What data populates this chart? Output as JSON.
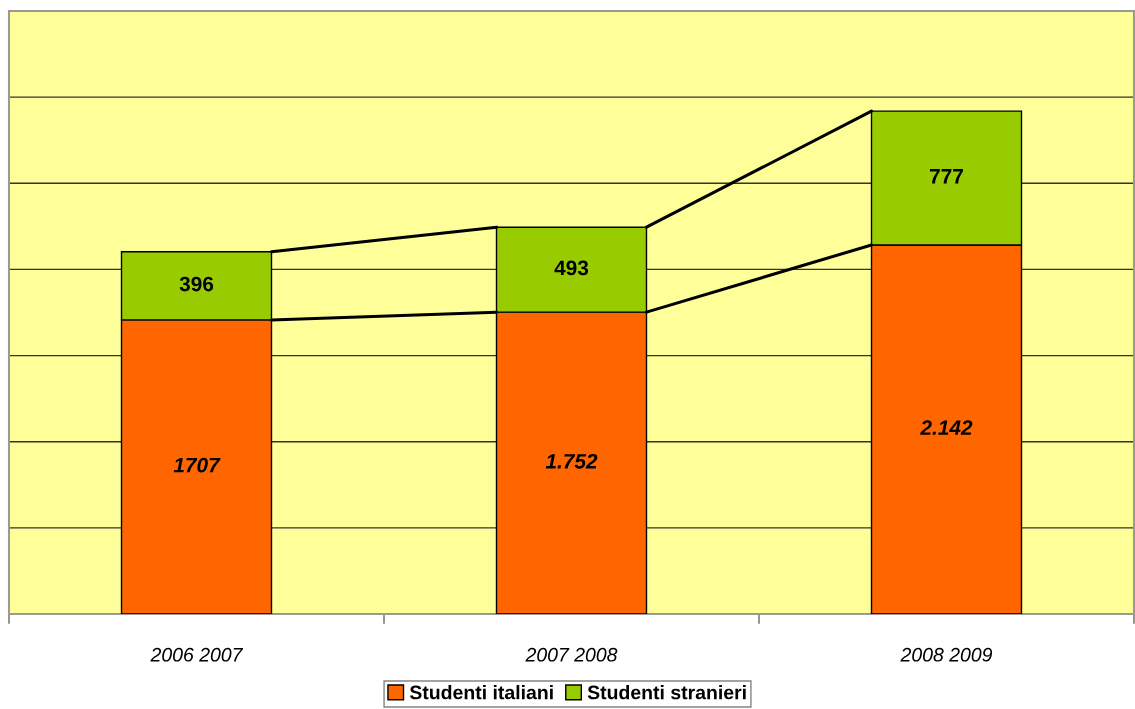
{
  "chart_data": {
    "type": "bar",
    "stacked": true,
    "categories": [
      "2006 2007",
      "2007 2008",
      "2008 2009"
    ],
    "series": [
      {
        "name": "Studenti italiani",
        "color": "#ff6600",
        "values": [
          1707,
          1752,
          2142
        ],
        "value_labels": [
          "1707",
          "1.752",
          "2.142"
        ]
      },
      {
        "name": "Studenti stranieri",
        "color": "#99cc00",
        "values": [
          396,
          493,
          777
        ],
        "value_labels": [
          "396",
          "493",
          "777"
        ]
      }
    ],
    "ylim": [
      0,
      3500
    ],
    "yticks": [
      0,
      500,
      1000,
      1500,
      2000,
      2500,
      3000,
      3500
    ],
    "grid": "y",
    "legend": "bottom",
    "tick_labels": "x",
    "line_style": "solid"
  }
}
